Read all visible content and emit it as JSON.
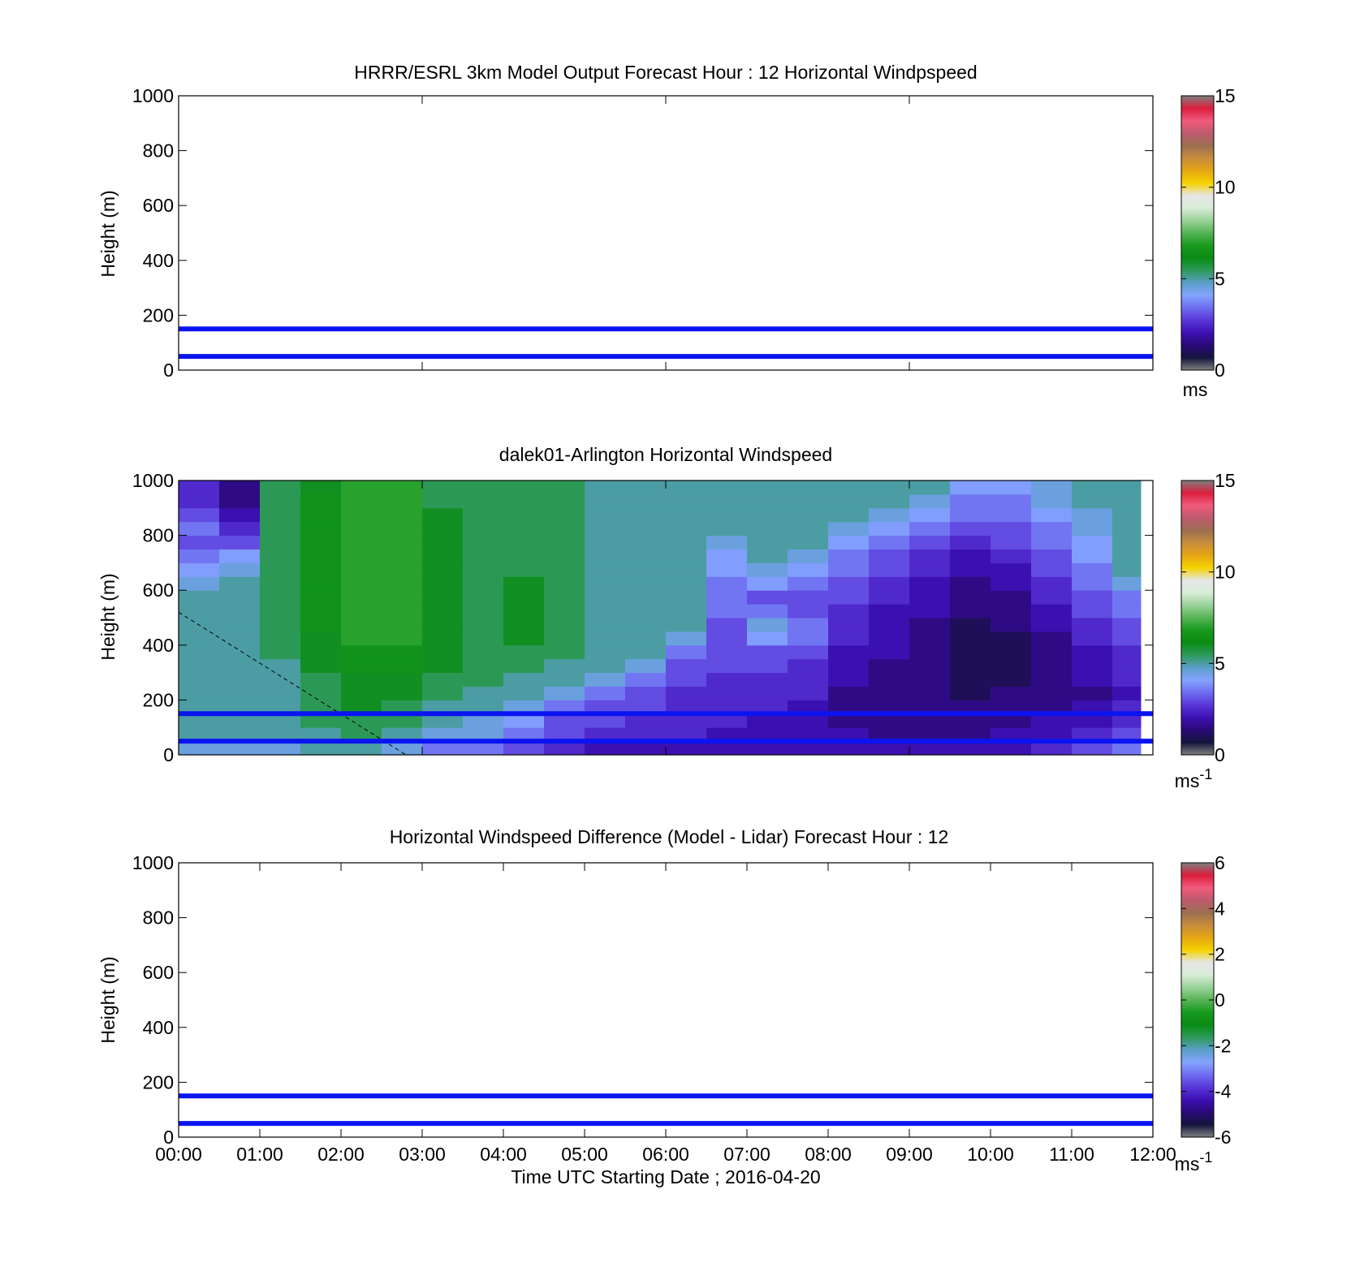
{
  "figure": {
    "xlabel": "Time UTC  Starting Date ; 2016-04-20"
  },
  "colormap": [
    "#7f7f7f",
    "#14143c",
    "#2a0a78",
    "#3c10b4",
    "#5a36d8",
    "#6e6ef0",
    "#84a4ff",
    "#5a9ec8",
    "#2d9a5a",
    "#0a8c14",
    "#189a1e",
    "#56b456",
    "#9ad29a",
    "#d8ecd8",
    "#e6e6e6",
    "#f5d200",
    "#e6a514",
    "#c88c3c",
    "#9b6e50",
    "#be5a6e",
    "#f05a7d",
    "#dc1e3c",
    "#7f7f7f"
  ],
  "chart_data": [
    {
      "type": "heatmap",
      "title": "HRRR/ESRL 3km Model Output   Forecast Hour : 12 Horizontal Windpspeed",
      "ylabel": "Height (m)",
      "xlim": [
        "00:00",
        "12:00"
      ],
      "ylim": [
        0,
        1000
      ],
      "yticks": [
        "0",
        "200",
        "400",
        "600",
        "800",
        "1000"
      ],
      "xtick_hours": [
        0,
        3,
        6,
        9
      ],
      "reference_lines_m": [
        50,
        150
      ],
      "reference_line_color": "#0a14f0",
      "colorbar": {
        "min": 0,
        "max": 15,
        "ticks": [
          "0",
          "5",
          "10",
          "15"
        ],
        "unit": "ms"
      },
      "has_data": false
    },
    {
      "type": "heatmap",
      "title": "dalek01-Arlington  Horizontal Windspeed",
      "ylabel": "Height (m)",
      "xlim": [
        "00:00",
        "12:00"
      ],
      "ylim": [
        0,
        1000
      ],
      "yticks": [
        "0",
        "200",
        "400",
        "600",
        "800",
        "1000"
      ],
      "xtick_hours": [
        0,
        3,
        6,
        9
      ],
      "reference_lines_m": [
        50,
        150
      ],
      "reference_line_color": "#0a14f0",
      "colorbar": {
        "min": 0,
        "max": 15,
        "ticks": [
          "0",
          "5",
          "10",
          "15"
        ],
        "unit": "ms",
        "unit_sup": "-1"
      },
      "has_data": true,
      "data_end_hour": 11.85,
      "heights_m": [
        25,
        75,
        125,
        175,
        225,
        275,
        325,
        375,
        425,
        475,
        525,
        575,
        625,
        675,
        725,
        775,
        825,
        875,
        925,
        975
      ],
      "windspeed_ms_by_hour": [
        {
          "hour": 0.0,
          "values": [
            4.5,
            5.0,
            5.0,
            5.0,
            5.0,
            5.0,
            5.0,
            5.0,
            5.0,
            5.0,
            5.0,
            5.0,
            4.5,
            4.0,
            3.5,
            3.0,
            3.5,
            3.0,
            2.5,
            2.5
          ]
        },
        {
          "hour": 0.5,
          "values": [
            4.5,
            5.0,
            5.0,
            5.0,
            5.0,
            5.0,
            5.0,
            5.0,
            5.0,
            5.0,
            5.0,
            5.0,
            5.0,
            4.5,
            4.0,
            3.0,
            2.5,
            2.0,
            1.5,
            1.5
          ]
        },
        {
          "hour": 1.0,
          "values": [
            4.5,
            5.0,
            5.0,
            5.0,
            5.0,
            5.0,
            5.0,
            5.5,
            5.5,
            5.5,
            5.5,
            5.5,
            5.5,
            5.5,
            5.5,
            5.5,
            5.5,
            5.5,
            5.5,
            5.5
          ]
        },
        {
          "hour": 1.5,
          "values": [
            5.0,
            5.0,
            5.5,
            5.5,
            5.5,
            5.5,
            6.0,
            6.0,
            6.0,
            6.5,
            6.5,
            6.5,
            6.5,
            6.5,
            6.5,
            6.5,
            6.5,
            6.5,
            6.5,
            6.0
          ]
        },
        {
          "hour": 2.0,
          "values": [
            5.0,
            5.5,
            5.5,
            6.0,
            6.0,
            6.0,
            6.5,
            6.5,
            7.0,
            7.0,
            7.0,
            7.0,
            7.0,
            7.0,
            7.0,
            7.0,
            7.0,
            7.0,
            7.0,
            7.0
          ]
        },
        {
          "hour": 2.5,
          "values": [
            4.5,
            5.0,
            5.5,
            5.5,
            6.0,
            6.0,
            6.5,
            6.5,
            7.0,
            7.0,
            7.0,
            7.0,
            7.0,
            7.0,
            7.0,
            7.0,
            7.0,
            7.0,
            7.0,
            7.0
          ]
        },
        {
          "hour": 3.0,
          "values": [
            3.5,
            4.5,
            5.0,
            5.0,
            5.5,
            5.5,
            6.0,
            6.0,
            6.0,
            6.0,
            6.0,
            6.0,
            6.0,
            6.0,
            6.0,
            6.0,
            6.0,
            6.0,
            5.5,
            5.5
          ]
        },
        {
          "hour": 3.5,
          "values": [
            3.5,
            4.5,
            4.5,
            5.0,
            5.0,
            5.5,
            5.5,
            5.5,
            5.5,
            5.5,
            5.5,
            5.5,
            5.5,
            5.5,
            5.5,
            5.5,
            5.5,
            5.5,
            5.5,
            5.5
          ]
        },
        {
          "hour": 4.0,
          "values": [
            3.0,
            3.5,
            4.0,
            4.5,
            5.0,
            5.0,
            5.5,
            5.5,
            6.0,
            6.0,
            6.0,
            6.0,
            6.0,
            5.5,
            5.5,
            5.5,
            5.5,
            5.5,
            5.5,
            5.5
          ]
        },
        {
          "hour": 4.5,
          "values": [
            2.5,
            3.0,
            3.0,
            3.5,
            4.5,
            5.0,
            5.0,
            5.5,
            5.5,
            5.5,
            5.5,
            5.5,
            5.5,
            5.5,
            5.5,
            5.5,
            5.5,
            5.5,
            5.5,
            5.5
          ]
        },
        {
          "hour": 5.0,
          "values": [
            2.0,
            2.5,
            3.0,
            3.0,
            3.5,
            4.5,
            5.0,
            5.0,
            5.0,
            5.0,
            5.0,
            5.0,
            5.0,
            5.0,
            5.0,
            5.0,
            5.0,
            5.0,
            5.0,
            5.0
          ]
        },
        {
          "hour": 5.5,
          "values": [
            2.0,
            2.5,
            2.5,
            3.0,
            3.0,
            3.5,
            4.5,
            5.0,
            5.0,
            5.0,
            5.0,
            5.0,
            5.0,
            5.0,
            5.0,
            5.0,
            5.0,
            5.0,
            5.0,
            5.0
          ]
        },
        {
          "hour": 6.0,
          "values": [
            2.0,
            2.5,
            2.5,
            2.5,
            2.5,
            3.0,
            3.0,
            3.5,
            4.5,
            5.0,
            5.0,
            5.0,
            5.0,
            5.0,
            5.0,
            5.0,
            5.0,
            5.0,
            5.0,
            5.0
          ]
        },
        {
          "hour": 6.5,
          "values": [
            2.0,
            2.0,
            2.5,
            2.5,
            2.5,
            2.5,
            3.0,
            3.0,
            3.0,
            3.0,
            3.5,
            3.5,
            3.5,
            4.0,
            4.0,
            4.5,
            5.0,
            5.0,
            5.0,
            5.0
          ]
        },
        {
          "hour": 7.0,
          "values": [
            2.0,
            2.0,
            2.0,
            2.5,
            2.5,
            2.5,
            3.0,
            3.0,
            4.0,
            4.5,
            3.5,
            3.0,
            4.0,
            4.5,
            5.0,
            5.0,
            5.0,
            5.0,
            5.0,
            5.0
          ]
        },
        {
          "hour": 7.5,
          "values": [
            2.0,
            2.0,
            2.0,
            2.0,
            2.5,
            2.5,
            2.5,
            3.0,
            3.5,
            3.5,
            3.0,
            3.0,
            3.5,
            4.0,
            4.5,
            5.0,
            5.0,
            5.0,
            5.0,
            5.0
          ]
        },
        {
          "hour": 8.0,
          "values": [
            2.0,
            2.0,
            1.5,
            1.5,
            1.5,
            2.0,
            2.0,
            2.0,
            2.5,
            2.5,
            2.5,
            3.0,
            3.0,
            3.5,
            3.5,
            4.0,
            4.5,
            5.0,
            5.0,
            5.0
          ]
        },
        {
          "hour": 8.5,
          "values": [
            2.0,
            1.5,
            1.5,
            1.5,
            1.5,
            1.5,
            1.5,
            2.0,
            2.0,
            2.0,
            2.0,
            2.5,
            2.5,
            3.0,
            3.0,
            3.5,
            4.0,
            4.5,
            5.0,
            5.0
          ]
        },
        {
          "hour": 9.0,
          "values": [
            2.0,
            1.5,
            1.5,
            1.5,
            1.5,
            1.5,
            1.5,
            1.5,
            1.5,
            1.5,
            2.0,
            2.0,
            2.0,
            2.5,
            2.5,
            3.0,
            3.5,
            4.0,
            4.5,
            5.0
          ]
        },
        {
          "hour": 9.5,
          "values": [
            2.0,
            1.5,
            1.5,
            1.5,
            1.0,
            1.0,
            1.0,
            1.0,
            1.0,
            1.0,
            1.5,
            1.5,
            1.5,
            2.0,
            2.0,
            2.5,
            3.0,
            3.5,
            3.5,
            4.0
          ]
        },
        {
          "hour": 10.0,
          "values": [
            2.0,
            2.0,
            1.5,
            1.5,
            1.5,
            1.0,
            1.0,
            1.0,
            1.0,
            1.5,
            1.5,
            1.5,
            2.0,
            2.0,
            2.5,
            3.0,
            3.0,
            3.5,
            3.5,
            4.0
          ]
        },
        {
          "hour": 10.5,
          "values": [
            2.5,
            2.0,
            2.0,
            1.5,
            1.5,
            1.5,
            1.5,
            1.5,
            1.5,
            2.0,
            2.0,
            2.5,
            2.5,
            3.0,
            3.0,
            3.5,
            3.5,
            4.0,
            4.5,
            4.5
          ]
        },
        {
          "hour": 11.0,
          "values": [
            3.0,
            2.5,
            2.0,
            2.0,
            1.5,
            2.0,
            2.0,
            2.0,
            2.5,
            2.5,
            3.0,
            3.0,
            3.5,
            3.5,
            4.0,
            4.0,
            4.5,
            4.5,
            5.0,
            5.0
          ]
        },
        {
          "hour": 11.5,
          "values": [
            3.5,
            3.0,
            2.5,
            2.5,
            2.0,
            2.5,
            2.5,
            2.5,
            3.0,
            3.0,
            3.5,
            3.5,
            4.5,
            5.0,
            5.0,
            5.0,
            5.0,
            5.0,
            5.0,
            5.0
          ]
        }
      ],
      "dashed_line": [
        {
          "hour": 0.0,
          "height_m": 520
        },
        {
          "hour": 2.8,
          "height_m": 0
        }
      ]
    },
    {
      "type": "heatmap",
      "title": "Horizontal Windspeed Difference (Model - Lidar) Forecast Hour : 12",
      "ylabel": "Height (m)",
      "xlim": [
        "00:00",
        "12:00"
      ],
      "ylim": [
        0,
        1000
      ],
      "yticks": [
        "0",
        "200",
        "400",
        "600",
        "800",
        "1000"
      ],
      "xticks": [
        "00:00",
        "01:00",
        "02:00",
        "03:00",
        "04:00",
        "05:00",
        "06:00",
        "07:00",
        "08:00",
        "09:00",
        "10:00",
        "11:00",
        "12:00"
      ],
      "reference_lines_m": [
        50,
        150
      ],
      "reference_line_color": "#0a14f0",
      "colorbar": {
        "min": -6,
        "max": 6,
        "ticks": [
          "-6",
          "-4",
          "-2",
          "0",
          "2",
          "4",
          "6"
        ],
        "unit": "ms",
        "unit_sup": "-1"
      },
      "has_data": false
    }
  ]
}
